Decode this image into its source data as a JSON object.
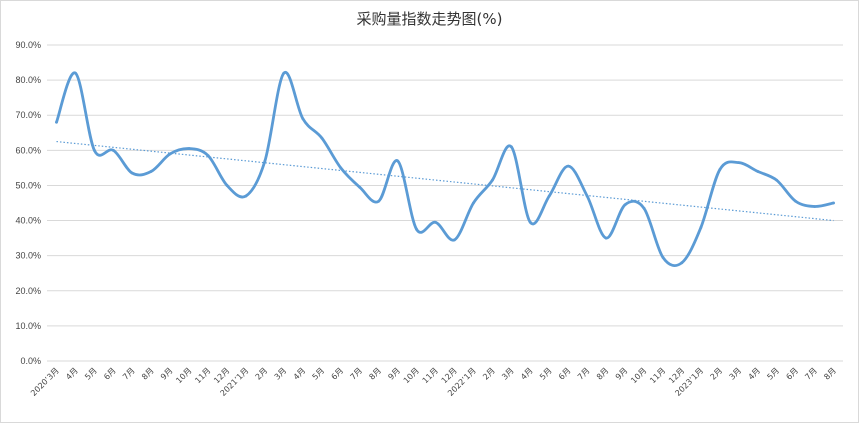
{
  "chart_data": {
    "type": "line",
    "title": "采购量指数走势图(%)",
    "xlabel": "",
    "ylabel": "",
    "ylim": [
      0,
      90
    ],
    "y_ticks": [
      "0.0%",
      "10.0%",
      "20.0%",
      "30.0%",
      "40.0%",
      "50.0%",
      "60.0%",
      "70.0%",
      "80.0%",
      "90.0%"
    ],
    "y_tick_values": [
      0,
      10,
      20,
      30,
      40,
      50,
      60,
      70,
      80,
      90
    ],
    "grid": true,
    "legend": "none",
    "categories": [
      "2020’3月",
      "4月",
      "5月",
      "6月",
      "7月",
      "8月",
      "9月",
      "10月",
      "11月",
      "12月",
      "2021’1月",
      "2月",
      "3月",
      "4月",
      "5月",
      "6月",
      "7月",
      "8月",
      "9月",
      "10月",
      "11月",
      "12月",
      "2022’1月",
      "2月",
      "3月",
      "4月",
      "5月",
      "6月",
      "7月",
      "8月",
      "9月",
      "10月",
      "11月",
      "12月",
      "2023’1月",
      "2月",
      "3月",
      "4月",
      "5月",
      "6月",
      "7月",
      "8月"
    ],
    "values": [
      68,
      82,
      60,
      60,
      53.5,
      54,
      59,
      60.5,
      58.5,
      50,
      47,
      57,
      82,
      69,
      63.5,
      55,
      49.5,
      45.5,
      57,
      37.5,
      39.5,
      34.5,
      45,
      51.5,
      61,
      39.5,
      47,
      55.5,
      47,
      35,
      44.5,
      43.5,
      29.5,
      28,
      38,
      54.5,
      56.5,
      54,
      51.5,
      45.5,
      44,
      45
    ],
    "trendline": {
      "type": "linear",
      "start": 62.5,
      "end": 40
    },
    "colors": {
      "line": "#5b9bd5",
      "trend": "#5b9bd5",
      "grid": "#d9d9d9"
    }
  }
}
